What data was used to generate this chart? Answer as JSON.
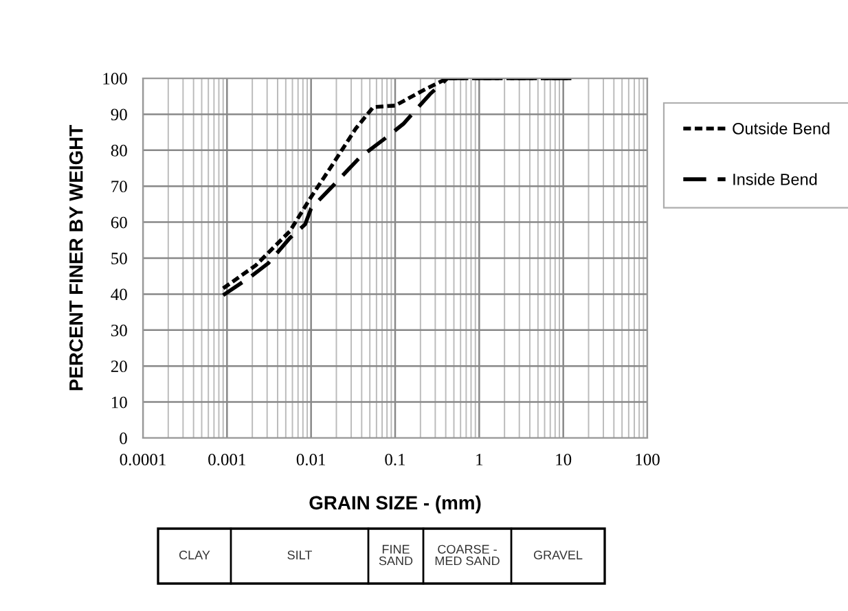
{
  "chart_data": {
    "type": "line",
    "xlabel": "GRAIN SIZE - (mm)",
    "ylabel": "PERCENT FINER BY WEIGHT",
    "series": [
      {
        "name": "Outside Bend",
        "color": "#000000",
        "line_style": "dotted",
        "x": [
          0.0009,
          0.0022,
          0.0056,
          0.01,
          0.018,
          0.034,
          0.055,
          0.1,
          0.23,
          0.42,
          12.6
        ],
        "values": [
          41.6,
          48,
          57.5,
          67,
          76,
          86,
          92,
          92.4,
          97,
          100,
          100
        ]
      },
      {
        "name": "Inside Bend",
        "color": "#000000",
        "line_style": "dashed",
        "x": [
          0.0009,
          0.0019,
          0.0031,
          0.0056,
          0.0085,
          0.01,
          0.018,
          0.038,
          0.078,
          0.125,
          0.26,
          0.42,
          12.6
        ],
        "values": [
          39.7,
          44.8,
          48.6,
          55.6,
          59.4,
          63.8,
          70,
          78,
          83.5,
          87.3,
          95.6,
          100,
          100
        ]
      }
    ],
    "log": "x",
    "xlim": [
      0.0001,
      100
    ],
    "xticks": [
      0.0001,
      0.001,
      0.01,
      0.1,
      1,
      10,
      100
    ],
    "ylim": [
      0,
      100
    ],
    "yticks": [
      0,
      10,
      20,
      30,
      40,
      50,
      60,
      70,
      80,
      90,
      100
    ],
    "grid": true,
    "legend": "right",
    "marker": "none",
    "annotations": [
      "CLAY",
      "SILT",
      "FINE\nSAND",
      "COARSE -\nMED SAND",
      "GRAVEL"
    ]
  }
}
